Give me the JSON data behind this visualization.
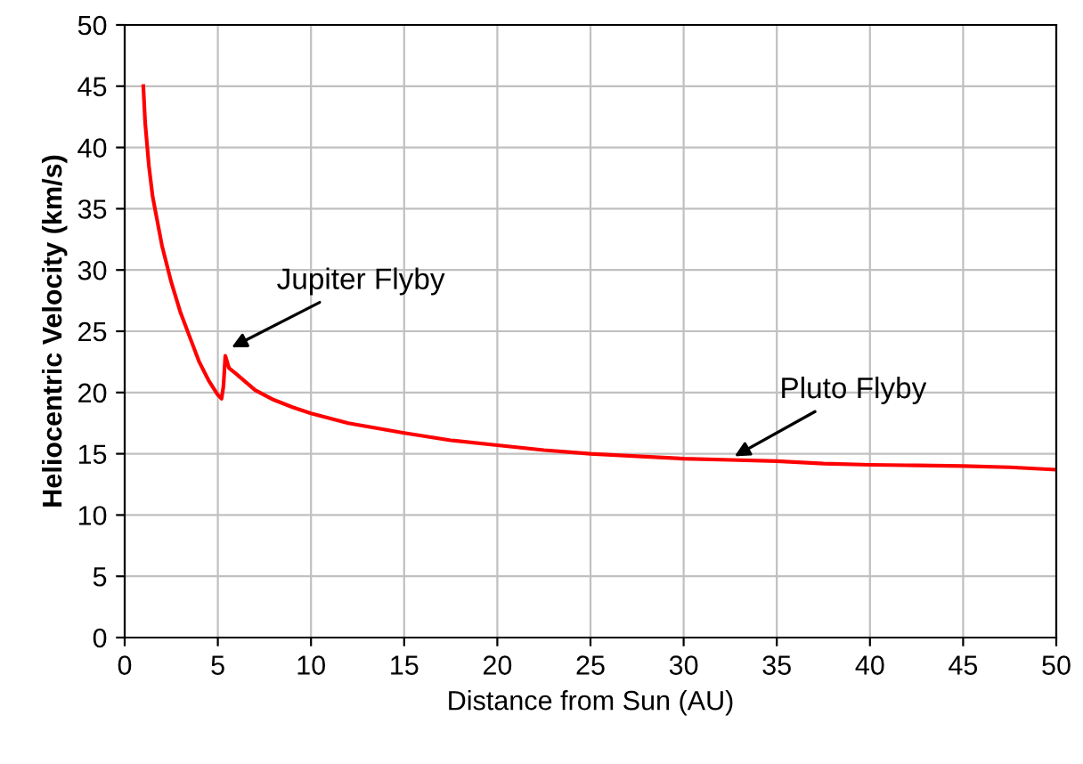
{
  "chart_data": {
    "type": "line",
    "xlabel": "Distance from Sun (AU)",
    "ylabel": "Heliocentric Velocity (km/s)",
    "x": [
      1.0,
      1.1,
      1.3,
      1.5,
      2,
      2.5,
      3,
      3.5,
      4,
      4.5,
      5,
      5.2,
      5.3,
      5.4,
      5.6,
      6,
      7,
      8,
      9,
      10,
      12,
      15,
      17.5,
      20,
      22.5,
      25,
      27.5,
      30,
      32.5,
      35,
      37.5,
      40,
      42.5,
      45,
      47.5,
      50
    ],
    "series": [
      {
        "color": "#ff0000",
        "values": [
          45,
          42,
          38.5,
          36,
          32,
          29,
          26.5,
          24.5,
          22.5,
          21,
          19.8,
          19.5,
          20.5,
          23,
          22,
          21.5,
          20.2,
          19.4,
          18.8,
          18.3,
          17.5,
          16.7,
          16.1,
          15.7,
          15.3,
          15.0,
          14.8,
          14.6,
          14.5,
          14.4,
          14.2,
          14.1,
          14.05,
          14.0,
          13.9,
          13.7
        ]
      }
    ],
    "xlim": [
      0,
      50
    ],
    "xticks": [
      0,
      5,
      10,
      15,
      20,
      25,
      30,
      35,
      40,
      45,
      50
    ],
    "ylim": [
      0,
      50
    ],
    "yticks": [
      0,
      5,
      10,
      15,
      20,
      25,
      30,
      35,
      40,
      45,
      50
    ],
    "grid": true,
    "marker": "none",
    "line_style": "solid",
    "annotations": [
      {
        "text": "Jupiter Flyby",
        "x": 5.5,
        "y": 23.5
      },
      {
        "text": "Pluto Flyby",
        "x": 32.5,
        "y": 14.6
      }
    ]
  }
}
